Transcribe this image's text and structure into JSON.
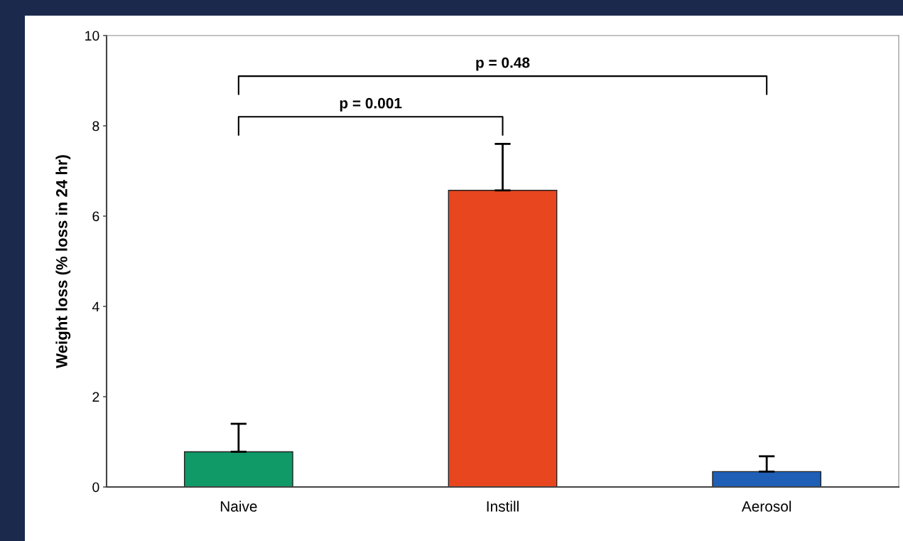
{
  "chart_data": {
    "type": "bar",
    "ylabel": "Weight loss (% loss in 24 hr)",
    "categories": [
      "Naive",
      "Instill",
      "Aerosol"
    ],
    "values": [
      0.78,
      6.57,
      0.34
    ],
    "colors": [
      "#0f9a68",
      "#e8461e",
      "#1f5fb5"
    ],
    "errors": [
      0.62,
      1.03,
      0.34
    ],
    "ylim": [
      0,
      10
    ],
    "yticks": [
      0,
      2,
      4,
      6,
      8,
      10
    ],
    "annotations": [
      "p = 0.001",
      "p = 0.48"
    ],
    "grid": false,
    "legend": false
  }
}
